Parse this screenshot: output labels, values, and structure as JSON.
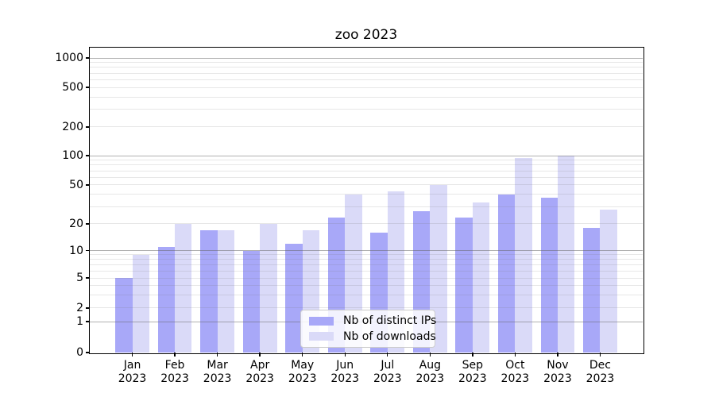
{
  "title": "zoo 2023",
  "chart_data": {
    "type": "bar",
    "title": "zoo 2023",
    "categories": [
      "Jan 2023",
      "Feb 2023",
      "Mar 2023",
      "Apr 2023",
      "May 2023",
      "Jun 2023",
      "Jul 2023",
      "Aug 2023",
      "Sep 2023",
      "Oct 2023",
      "Nov 2023",
      "Dec 2023"
    ],
    "series": [
      {
        "name": "Nb of distinct IPs",
        "color": "#a8a8f8",
        "values": [
          5,
          11,
          17,
          10,
          12,
          23,
          16,
          27,
          23,
          40,
          37,
          18
        ]
      },
      {
        "name": "Nb of downloads",
        "color": "#dadaf8",
        "values": [
          9,
          20,
          17,
          20,
          17,
          40,
          43,
          50,
          33,
          95,
          100,
          28
        ]
      }
    ],
    "xlabel": "",
    "ylabel": "",
    "yscale": "symlog",
    "yticks": [
      0,
      1,
      2,
      5,
      10,
      20,
      50,
      100,
      200,
      500,
      1000
    ],
    "ylim": [
      0,
      1200
    ],
    "grid": true,
    "legend_position": "lower center",
    "background": "#ffffff",
    "text_color": "#000000",
    "grid_major_color": "#b0b0b0",
    "grid_minor_color": "#e6e6e6"
  }
}
